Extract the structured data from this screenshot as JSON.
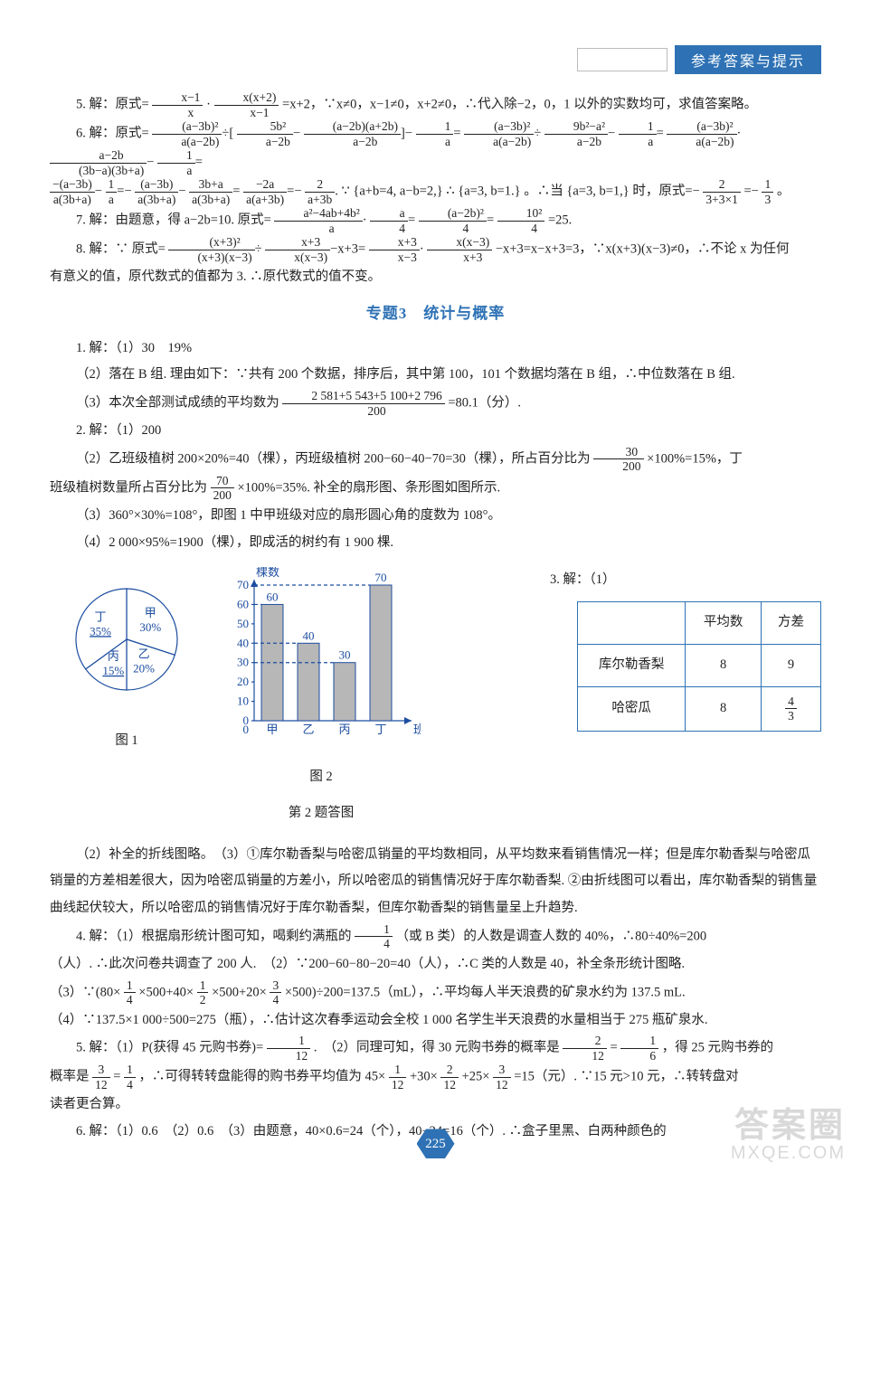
{
  "header": {
    "tag": "参考答案与提示"
  },
  "section3_title": "专题3　统计与概率",
  "solutions": {
    "s5": "5. 解：原式=",
    "s5_tail": "=x+2，∵x≠0，x−1≠0，x+2≠0，∴代入除−2，0，1 以外的实数均可，求值答案略。",
    "s6": "6. 解：原式=",
    "s6_mid": "。∴当",
    "s6_tail": "时，原式=−",
    "s6_eq": "=−",
    "s6_end": "。",
    "s7": "7. 解：由题意，得 a−2b=10. 原式=",
    "s7_tail": "=25.",
    "s8": "8. 解：∵ 原式=",
    "s8_tail": "−x+3=x−x+3=3，∵x(x+3)(x−3)≠0，∴不论 x 为任何",
    "s8_line2": "有意义的值，原代数式的值都为 3. ∴原代数式的值不变。"
  },
  "topic3": {
    "q1_1": "1. 解：（1）30　19%",
    "q1_2": "（2）落在 B 组. 理由如下：∵共有 200 个数据，排序后，其中第 100，101 个数据均落在 B 组，∴中位数落在 B 组.",
    "q1_3a": "（3）本次全部测试成绩的平均数为",
    "q1_3_num": "2 581+5 543+5 100+2 796",
    "q1_3_den": "200",
    "q1_3b": "=80.1（分）.",
    "q2_1": "2. 解：（1）200",
    "q2_2a": "（2）乙班级植树 200×20%=40（棵），丙班级植树 200−60−40−70=30（棵），所占百分比为",
    "q2_2_num": "30",
    "q2_2_den": "200",
    "q2_2b": "×100%=15%，丁",
    "q2_2c": "班级植树数量所占百分比为",
    "q2_2_num2": "70",
    "q2_2_den2": "200",
    "q2_2d": "×100%=35%. 补全的扇形图、条形图如图所示.",
    "q2_3": "（3）360°×30%=108°，即图 1 中甲班级对应的扇形圆心角的度数为 108°。",
    "q2_4": "（4）2 000×95%=1900（棵），即成活的树约有 1 900 棵.",
    "q3": "3. 解：（1）",
    "table": {
      "h1": "",
      "h2": "平均数",
      "h3": "方差",
      "r1c1": "库尔勒香梨",
      "r1c2": "8",
      "r1c3": "9",
      "r2c1": "哈密瓜",
      "r2c2": "8",
      "r2c3_num": "4",
      "r2c3_den": "3"
    },
    "fig1_caption": "图 1",
    "fig2_caption": "图 2",
    "fig_overall": "第 2 题答图",
    "q3_2": "（2）补全的折线图略。　（3）①库尔勒香梨与哈密瓜销量的平均数相同，从平均数来看销售情况一样；但是库尔勒香梨与哈密瓜销量的方差相差很大，因为哈密瓜销量的方差小，所以哈密瓜的销售情况好于库尔勒香梨. ②由折线图可以看出，库尔勒香梨的销售量曲线起伏较大，所以哈密瓜的销售情况好于库尔勒香梨，但库尔勒香梨的销售量呈上升趋势.",
    "q4_1a": "4. 解：（1）根据扇形统计图可知，喝剩约满瓶的",
    "q4_1_num": "1",
    "q4_1_den": "4",
    "q4_1b": "（或 B 类）的人数是调查人数的 40%，∴80÷40%=200",
    "q4_1c": "（人）. ∴此次问卷共调查了 200 人.　（2）∵200−60−80−20=40（人），∴C 类的人数是 40，补全条形统计图略.",
    "q4_3a": "（3）∵(80×",
    "q4_3b": "×500+40×",
    "q4_3c": "×500+20×",
    "q4_3d": "×500)÷200=137.5（mL），∴平均每人半天浪费的矿泉水约为 137.5 mL.",
    "q4_3_n1": "1",
    "q4_3_d1": "4",
    "q4_3_n2": "1",
    "q4_3_d2": "2",
    "q4_3_n3": "3",
    "q4_3_d3": "4",
    "q4_4": "（4）∵137.5×1 000÷500=275（瓶），∴估计这次春季运动会全校 1 000 名学生半天浪费的水量相当于 275 瓶矿泉水.",
    "q5_a": "5. 解：（1）P(获得 45 元购书券)=",
    "q5_1n": "1",
    "q5_1d": "12",
    "q5_b": ".　（2）同理可知，得 30 元购书券的概率是",
    "q5_2n": "2",
    "q5_2d": "12",
    "q5_eq1": "=",
    "q5_3n": "1",
    "q5_3d": "6",
    "q5_c": "，得 25 元购书券的",
    "q5_d": "概率是",
    "q5_4n": "3",
    "q5_4d": "12",
    "q5_eq2": "=",
    "q5_5n": "1",
    "q5_5d": "4",
    "q5_e": "，∴可得转转盘能得的购书券平均值为 45×",
    "q5_6n": "1",
    "q5_6d": "12",
    "q5_plus": "+30×",
    "q5_7n": "2",
    "q5_7d": "12",
    "q5_plus2": "+25×",
    "q5_8n": "3",
    "q5_8d": "12",
    "q5_f": "=15（元）. ∵15 元>10 元，∴转转盘对",
    "q5_g": "读者更合算。",
    "q6": "6. 解：（1）0.6　（2）0.6　（3）由题意，40×0.6=24（个），40−24=16（个）. ∴盒子里黑、白两种颜色的"
  },
  "pie": {
    "type": "pie",
    "labels": [
      "甲",
      "乙",
      "丙",
      "丁"
    ],
    "values": [
      30,
      20,
      15,
      35
    ],
    "colors": [
      "#ffffff",
      "#ffffff",
      "#ffffff",
      "#ffffff"
    ],
    "stroke": "#1c4da0",
    "center_label_color": "#1c4da0",
    "fontsize": 13
  },
  "bar": {
    "type": "bar",
    "ylabel": "棵数",
    "xlabel": "班级",
    "categories": [
      "甲",
      "乙",
      "丙",
      "丁"
    ],
    "values": [
      60,
      40,
      30,
      70
    ],
    "bar_color": "#b7b7b7",
    "axis_color": "#1c4da0",
    "grid_color": "#1c4da0",
    "ylim": [
      0,
      70
    ],
    "ytick_step": 10,
    "bar_width": 0.6,
    "fontsize": 13
  },
  "fracs": {
    "f5a_n": "x−1",
    "f5a_d": "x",
    "f5b_n": "x(x+2)",
    "f5b_d": "x−1",
    "f6a_n": "(a−3b)²",
    "f6a_d": "a(a−2b)",
    "f6b_n": "5b²",
    "f6b_d": "a−2b",
    "f6c_n": "(a−2b)(a+2b)",
    "f6c_d": "a−2b",
    "f6d_n": "1",
    "f6d_d": "a",
    "f6e_n": "(a−3b)²",
    "f6e_d": "a(a−2b)",
    "f6f_n": "9b²−a²",
    "f6f_d": "a−2b",
    "f6g_n": "(a−3b)²",
    "f6g_d": "a(a−2b)",
    "f6h_n": "a−2b",
    "f6h_d": "(3b−a)(3b+a)",
    "f6i_n": "−(a−3b)",
    "f6i_d": "a(3b+a)",
    "f6j_n": "(a−3b)",
    "f6j_d": "a(3b+a)",
    "f6k_n": "3b+a",
    "f6k_d": "a(3b+a)",
    "f6l_n": "−2a",
    "f6l_d": "a(a+3b)",
    "f6m_n": "2",
    "f6m_d": "a+3b",
    "f6cond1": "a+b=4,",
    "f6cond2": "a−b=2,",
    "f6cond3": "a=3,",
    "f6cond4": "b=1.",
    "f6cond5": "a=3,",
    "f6cond6": "b=1,",
    "f6r_n": "2",
    "f6r_d": "3+3×1",
    "f6res_n": "1",
    "f6res_d": "3",
    "f7a_n": "a²−4ab+4b²",
    "f7a_d": "a",
    "f7b_n": "a",
    "f7b_d": "4",
    "f7c_n": "(a−2b)²",
    "f7c_d": "4",
    "f7d_n": "10²",
    "f7d_d": "4",
    "f8a_n": "(x+3)²",
    "f8a_d": "(x+3)(x−3)",
    "f8b_n": "x+3",
    "f8b_d": "x(x−3)",
    "f8c_n": "x+3",
    "f8c_d": "x−3",
    "f8d_n": "x(x−3)",
    "f8d_d": "x+3"
  },
  "page_number": "225",
  "watermark": {
    "line1": "答案圈",
    "line2": "MXQE.COM"
  }
}
